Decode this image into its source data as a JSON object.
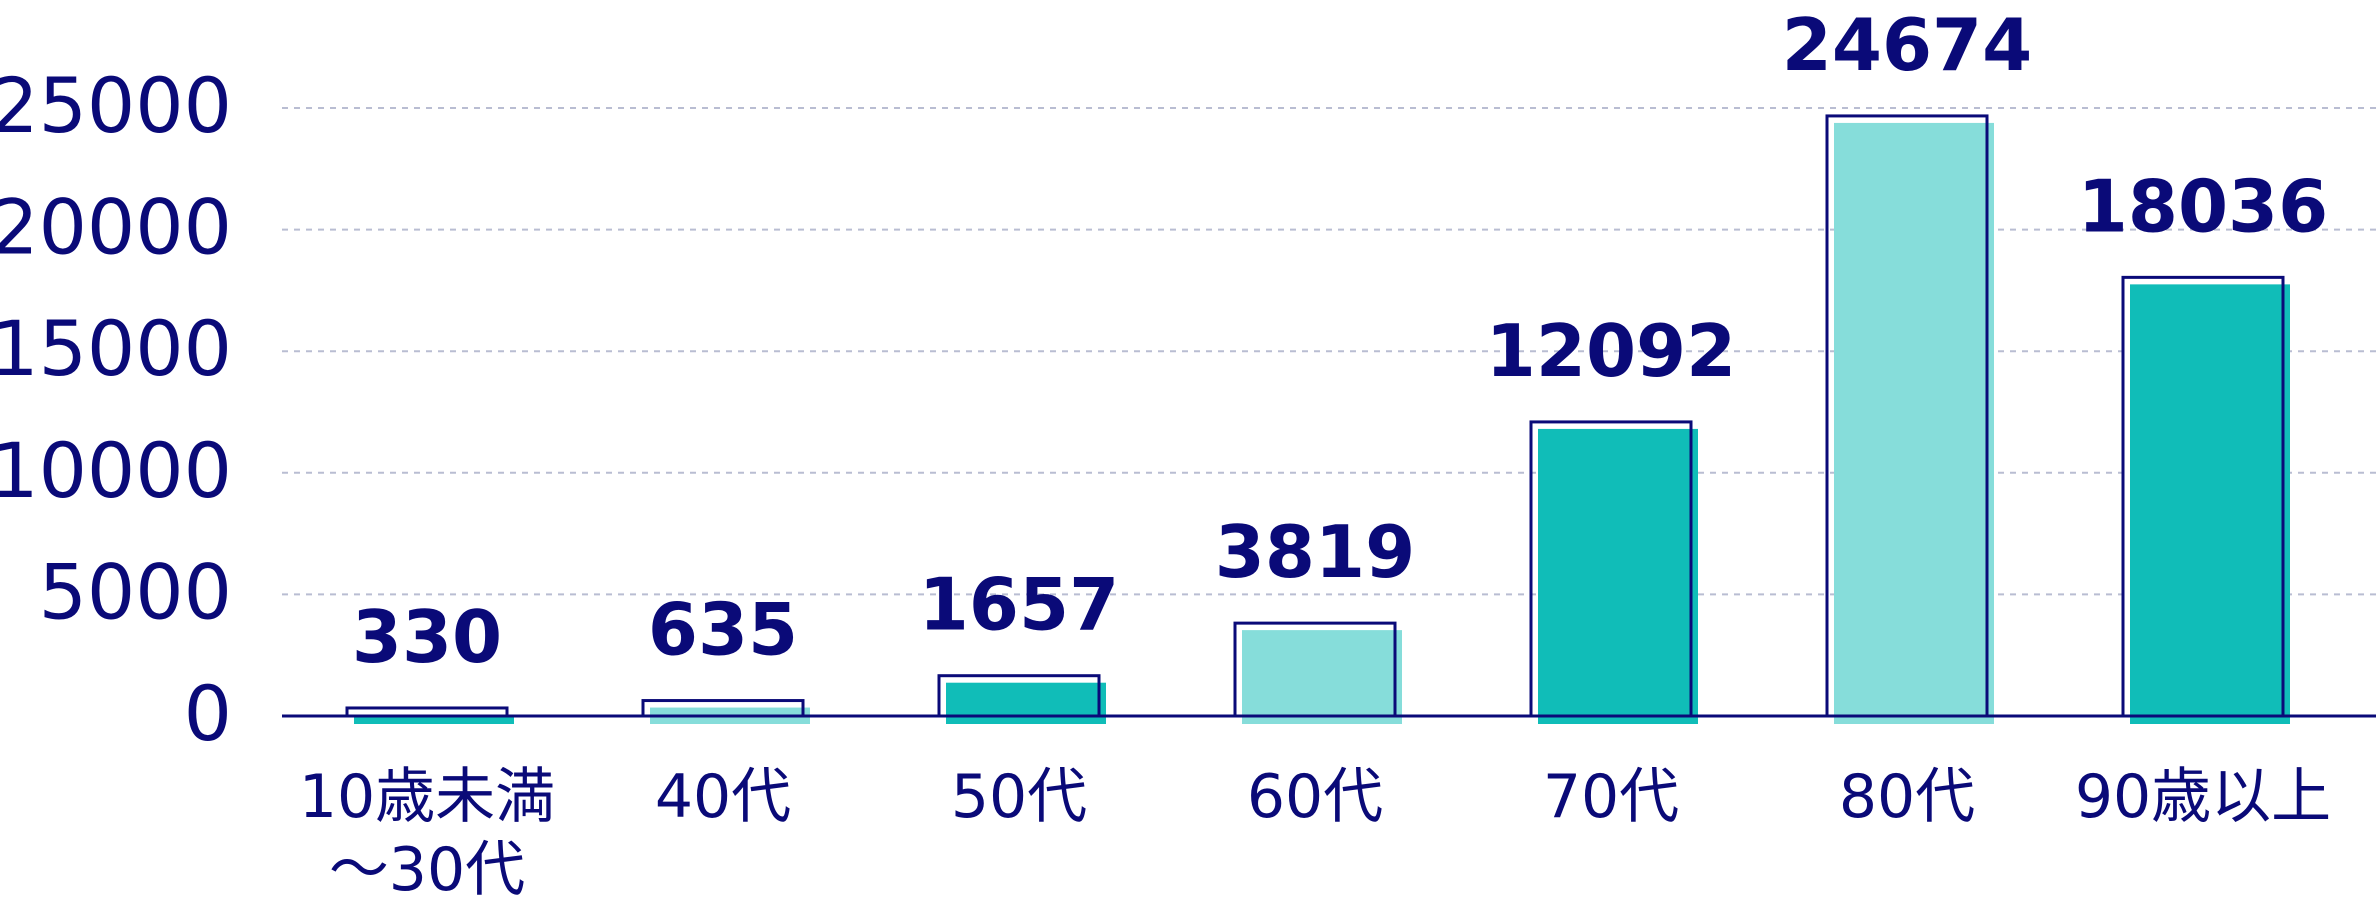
{
  "chart_data": {
    "type": "bar",
    "title": "",
    "xlabel": "",
    "ylabel": "",
    "categories": [
      {
        "lines": [
          "10歳未満",
          "～30代"
        ]
      },
      {
        "lines": [
          "40代"
        ]
      },
      {
        "lines": [
          "50代"
        ]
      },
      {
        "lines": [
          "60代"
        ]
      },
      {
        "lines": [
          "70代"
        ]
      },
      {
        "lines": [
          "80代"
        ]
      },
      {
        "lines": [
          "90歳以上"
        ]
      }
    ],
    "values": [
      330,
      635,
      1657,
      3819,
      12092,
      24674,
      18036
    ],
    "data_labels": [
      "330",
      "635",
      "1657",
      "3819",
      "12092",
      "24674",
      "18036"
    ],
    "ylim": [
      0,
      25000
    ],
    "yticks": [
      0,
      5000,
      10000,
      15000,
      20000,
      25000
    ],
    "ytick_labels": [
      "0",
      "5000",
      "10000",
      "15000",
      "20000",
      "25000"
    ],
    "grid": true,
    "legend": "none",
    "bar_colors": [
      "#10bdb8",
      "#86ddda",
      "#10bdb8",
      "#86ddda",
      "#10bdb8",
      "#86ddda",
      "#10bdb8"
    ],
    "outline_color": "#0a0a78",
    "text_color": "#0a0a78",
    "grid_color": "#b9bdd2"
  }
}
